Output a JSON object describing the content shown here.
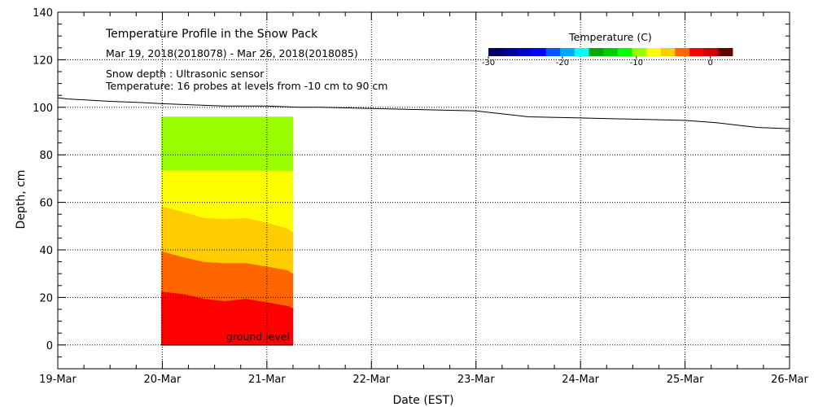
{
  "chart_data": {
    "type": "area",
    "title": "Temperature Profile in the Snow Pack",
    "subtitle": "Mar 19, 2018(2018078) - Mar 26, 2018(2018085)",
    "notes": [
      "Snow depth : Ultrasonic sensor",
      "Temperature: 16 probes at levels from -10 cm to 90 cm"
    ],
    "xlabel": "Date (EST)",
    "ylabel": "Depth, cm",
    "x_ticks": [
      "19-Mar",
      "20-Mar",
      "21-Mar",
      "22-Mar",
      "23-Mar",
      "24-Mar",
      "25-Mar",
      "26-Mar"
    ],
    "xlim": [
      0,
      7
    ],
    "ylim": [
      -10,
      140
    ],
    "y_ticks": [
      0,
      20,
      40,
      60,
      80,
      100,
      120,
      140
    ],
    "grid": true,
    "ground_label": "ground level",
    "snow_depth": {
      "name": "Snow depth",
      "x": [
        0,
        0.1,
        0.3,
        0.5,
        0.8,
        1.0,
        1.3,
        1.6,
        2.0,
        2.3,
        2.5,
        3.0,
        3.5,
        4.0,
        4.2,
        4.5,
        5.0,
        5.5,
        6.0,
        6.3,
        6.5,
        6.7,
        7.0
      ],
      "y": [
        104,
        103.5,
        103,
        102.5,
        102,
        101.5,
        101,
        100.5,
        100.5,
        100,
        100,
        99.5,
        99,
        98.5,
        97.5,
        96,
        95.5,
        95,
        94.5,
        93.5,
        92.5,
        91.5,
        91
      ]
    },
    "temperature_bands": {
      "x": [
        0.99,
        1.2,
        1.4,
        1.6,
        1.8,
        2.0,
        2.2,
        2.25
      ],
      "top": 96,
      "boundaries": [
        {
          "name": "b1",
          "y": [
            22.5,
            21.5,
            19.5,
            18.5,
            19.5,
            18,
            16.5,
            15.5
          ]
        },
        {
          "name": "b2",
          "y": [
            39.5,
            37,
            35,
            34.5,
            34.5,
            33,
            31.5,
            30
          ]
        },
        {
          "name": "b3",
          "y": [
            58.5,
            56,
            53.5,
            53,
            53.5,
            51.5,
            49,
            47.5
          ]
        },
        {
          "name": "b4",
          "y": [
            73.5,
            73.5,
            73.5,
            73.5,
            73.5,
            73.5,
            73.3,
            73.3
          ]
        }
      ],
      "fill_colors": [
        "#ff0000",
        "#ff6600",
        "#ffcc00",
        "#ffff00",
        "#99ff00"
      ]
    },
    "colorbar": {
      "title": "Temperature (C)",
      "range": [
        -30,
        3
      ],
      "ticks": [
        -30,
        -20,
        -10,
        0
      ],
      "colors": [
        "#000066",
        "#000099",
        "#0000cc",
        "#0000ff",
        "#0055ff",
        "#00aaff",
        "#00ffff",
        "#00aa00",
        "#00cc00",
        "#00ff00",
        "#99ff00",
        "#ffff00",
        "#ffcc00",
        "#ff6600",
        "#ff0000",
        "#cc0000",
        "#660000"
      ]
    }
  }
}
